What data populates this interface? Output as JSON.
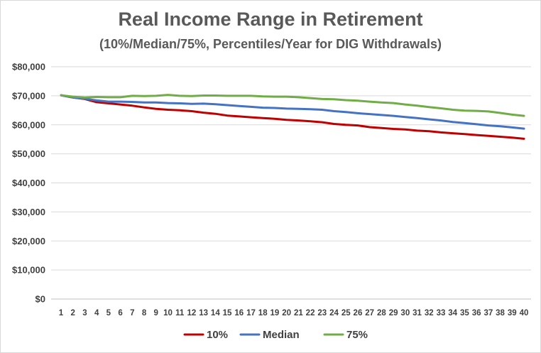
{
  "chart_data": {
    "type": "line",
    "title": "Real Income Range in Retirement",
    "subtitle": "(10%/Median/75%, Percentiles/Year for DIG Withdrawals)",
    "xlabel": "",
    "ylabel": "",
    "ylim": [
      0,
      80000
    ],
    "yticks": [
      "$0",
      "$10,000",
      "$20,000",
      "$30,000",
      "$40,000",
      "$50,000",
      "$60,000",
      "$70,000",
      "$80,000"
    ],
    "ytick_values": [
      0,
      10000,
      20000,
      30000,
      40000,
      50000,
      60000,
      70000,
      80000
    ],
    "grid": true,
    "legend": "bottom",
    "x": [
      1,
      2,
      3,
      4,
      5,
      6,
      7,
      8,
      9,
      10,
      11,
      12,
      13,
      14,
      15,
      16,
      17,
      18,
      19,
      20,
      21,
      22,
      23,
      24,
      25,
      26,
      27,
      28,
      29,
      30,
      31,
      32,
      33,
      34,
      35,
      36,
      37,
      38,
      39,
      40
    ],
    "series": [
      {
        "name": "10%",
        "color": "#c00000",
        "values": [
          70200,
          69400,
          68900,
          67800,
          67400,
          67000,
          66600,
          66000,
          65500,
          65200,
          65000,
          64700,
          64200,
          63800,
          63200,
          62900,
          62600,
          62300,
          62100,
          61700,
          61500,
          61200,
          60900,
          60300,
          60000,
          59800,
          59200,
          58900,
          58600,
          58400,
          58000,
          57800,
          57400,
          57100,
          56800,
          56500,
          56200,
          55900,
          55600,
          55200
        ]
      },
      {
        "name": "Median",
        "color": "#4472c4",
        "values": [
          70200,
          69400,
          69000,
          68400,
          68000,
          68000,
          67900,
          67700,
          67700,
          67500,
          67400,
          67200,
          67300,
          67100,
          66800,
          66500,
          66200,
          65900,
          65800,
          65600,
          65500,
          65400,
          65200,
          64700,
          64400,
          64000,
          63700,
          63400,
          63100,
          62700,
          62300,
          61900,
          61500,
          61000,
          60600,
          60200,
          59800,
          59500,
          59100,
          58700
        ]
      },
      {
        "name": "75%",
        "color": "#70ad47",
        "values": [
          70200,
          69700,
          69400,
          69600,
          69500,
          69500,
          70000,
          69900,
          70000,
          70300,
          70000,
          69900,
          70100,
          70100,
          70000,
          70000,
          70000,
          69800,
          69700,
          69700,
          69500,
          69200,
          68900,
          68800,
          68500,
          68300,
          68000,
          67700,
          67500,
          67000,
          66600,
          66100,
          65700,
          65200,
          64900,
          64800,
          64600,
          64100,
          63500,
          63100
        ]
      }
    ]
  }
}
